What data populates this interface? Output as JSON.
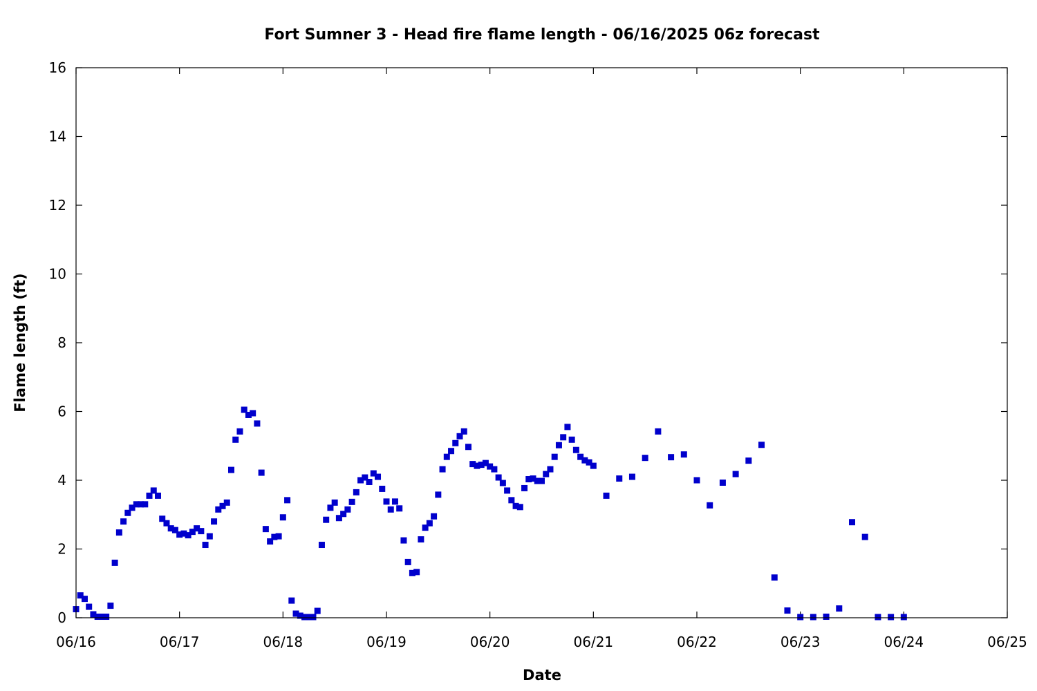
{
  "chart_data": {
    "type": "scatter",
    "title": "Fort Sumner 3 - Head fire flame length - 06/16/2025 06z forecast",
    "xlabel": "Date",
    "ylabel": "Flame length (ft)",
    "xlim": [
      "2025-06-16T00:00",
      "2025-06-25T00:00"
    ],
    "ylim": [
      0,
      16
    ],
    "x_ticks": [
      "06/16",
      "06/17",
      "06/18",
      "06/19",
      "06/20",
      "06/21",
      "06/22",
      "06/23",
      "06/24",
      "06/25"
    ],
    "y_ticks": [
      "0",
      "2",
      "4",
      "6",
      "8",
      "10",
      "12",
      "14",
      "16"
    ],
    "grid": false,
    "legend": false,
    "marker_color": "#0000cc",
    "series": [
      {
        "points": [
          [
            "2025-06-16T00:00",
            0.25
          ],
          [
            "2025-06-16T01:00",
            0.65
          ],
          [
            "2025-06-16T02:00",
            0.55
          ],
          [
            "2025-06-16T03:00",
            0.32
          ],
          [
            "2025-06-16T04:00",
            0.1
          ],
          [
            "2025-06-16T05:00",
            0.03
          ],
          [
            "2025-06-16T06:00",
            0.03
          ],
          [
            "2025-06-16T07:00",
            0.03
          ],
          [
            "2025-06-16T08:00",
            0.35
          ],
          [
            "2025-06-16T09:00",
            1.6
          ],
          [
            "2025-06-16T10:00",
            2.48
          ],
          [
            "2025-06-16T11:00",
            2.8
          ],
          [
            "2025-06-16T12:00",
            3.05
          ],
          [
            "2025-06-16T13:00",
            3.2
          ],
          [
            "2025-06-16T14:00",
            3.3
          ],
          [
            "2025-06-16T15:00",
            3.3
          ],
          [
            "2025-06-16T16:00",
            3.3
          ],
          [
            "2025-06-16T17:00",
            3.55
          ],
          [
            "2025-06-16T18:00",
            3.7
          ],
          [
            "2025-06-16T19:00",
            3.55
          ],
          [
            "2025-06-16T20:00",
            2.88
          ],
          [
            "2025-06-16T21:00",
            2.75
          ],
          [
            "2025-06-16T22:00",
            2.6
          ],
          [
            "2025-06-16T23:00",
            2.55
          ],
          [
            "2025-06-17T00:00",
            2.42
          ],
          [
            "2025-06-17T01:00",
            2.45
          ],
          [
            "2025-06-17T02:00",
            2.4
          ],
          [
            "2025-06-17T03:00",
            2.5
          ],
          [
            "2025-06-17T04:00",
            2.6
          ],
          [
            "2025-06-17T05:00",
            2.52
          ],
          [
            "2025-06-17T06:00",
            2.12
          ],
          [
            "2025-06-17T07:00",
            2.37
          ],
          [
            "2025-06-17T08:00",
            2.8
          ],
          [
            "2025-06-17T09:00",
            3.15
          ],
          [
            "2025-06-17T10:00",
            3.25
          ],
          [
            "2025-06-17T11:00",
            3.35
          ],
          [
            "2025-06-17T12:00",
            4.3
          ],
          [
            "2025-06-17T13:00",
            5.18
          ],
          [
            "2025-06-17T14:00",
            5.42
          ],
          [
            "2025-06-17T15:00",
            6.05
          ],
          [
            "2025-06-17T16:00",
            5.9
          ],
          [
            "2025-06-17T17:00",
            5.95
          ],
          [
            "2025-06-17T18:00",
            5.65
          ],
          [
            "2025-06-17T19:00",
            4.22
          ],
          [
            "2025-06-17T20:00",
            2.58
          ],
          [
            "2025-06-17T21:00",
            2.22
          ],
          [
            "2025-06-17T22:00",
            2.35
          ],
          [
            "2025-06-17T23:00",
            2.37
          ],
          [
            "2025-06-18T00:00",
            2.92
          ],
          [
            "2025-06-18T01:00",
            3.42
          ],
          [
            "2025-06-18T02:00",
            0.5
          ],
          [
            "2025-06-18T03:00",
            0.12
          ],
          [
            "2025-06-18T04:00",
            0.06
          ],
          [
            "2025-06-18T05:00",
            0.02
          ],
          [
            "2025-06-18T06:00",
            0.02
          ],
          [
            "2025-06-18T07:00",
            0.02
          ],
          [
            "2025-06-18T08:00",
            0.2
          ],
          [
            "2025-06-18T09:00",
            2.12
          ],
          [
            "2025-06-18T10:00",
            2.85
          ],
          [
            "2025-06-18T11:00",
            3.2
          ],
          [
            "2025-06-18T12:00",
            3.35
          ],
          [
            "2025-06-18T13:00",
            2.9
          ],
          [
            "2025-06-18T14:00",
            3.02
          ],
          [
            "2025-06-18T15:00",
            3.15
          ],
          [
            "2025-06-18T16:00",
            3.37
          ],
          [
            "2025-06-18T17:00",
            3.65
          ],
          [
            "2025-06-18T18:00",
            4.0
          ],
          [
            "2025-06-18T19:00",
            4.08
          ],
          [
            "2025-06-18T20:00",
            3.95
          ],
          [
            "2025-06-18T21:00",
            4.2
          ],
          [
            "2025-06-18T22:00",
            4.1
          ],
          [
            "2025-06-18T23:00",
            3.75
          ],
          [
            "2025-06-19T00:00",
            3.38
          ],
          [
            "2025-06-19T01:00",
            3.15
          ],
          [
            "2025-06-19T02:00",
            3.38
          ],
          [
            "2025-06-19T03:00",
            3.18
          ],
          [
            "2025-06-19T04:00",
            2.25
          ],
          [
            "2025-06-19T05:00",
            1.62
          ],
          [
            "2025-06-19T06:00",
            1.3
          ],
          [
            "2025-06-19T07:00",
            1.33
          ],
          [
            "2025-06-19T08:00",
            2.28
          ],
          [
            "2025-06-19T09:00",
            2.62
          ],
          [
            "2025-06-19T10:00",
            2.75
          ],
          [
            "2025-06-19T11:00",
            2.95
          ],
          [
            "2025-06-19T12:00",
            3.58
          ],
          [
            "2025-06-19T13:00",
            4.32
          ],
          [
            "2025-06-19T14:00",
            4.68
          ],
          [
            "2025-06-19T15:00",
            4.85
          ],
          [
            "2025-06-19T16:00",
            5.08
          ],
          [
            "2025-06-19T17:00",
            5.28
          ],
          [
            "2025-06-19T18:00",
            5.42
          ],
          [
            "2025-06-19T19:00",
            4.97
          ],
          [
            "2025-06-19T20:00",
            4.47
          ],
          [
            "2025-06-19T21:00",
            4.42
          ],
          [
            "2025-06-19T22:00",
            4.45
          ],
          [
            "2025-06-19T23:00",
            4.5
          ],
          [
            "2025-06-20T00:00",
            4.4
          ],
          [
            "2025-06-20T01:00",
            4.32
          ],
          [
            "2025-06-20T02:00",
            4.08
          ],
          [
            "2025-06-20T03:00",
            3.92
          ],
          [
            "2025-06-20T04:00",
            3.7
          ],
          [
            "2025-06-20T05:00",
            3.42
          ],
          [
            "2025-06-20T06:00",
            3.25
          ],
          [
            "2025-06-20T07:00",
            3.22
          ],
          [
            "2025-06-20T08:00",
            3.77
          ],
          [
            "2025-06-20T09:00",
            4.03
          ],
          [
            "2025-06-20T10:00",
            4.05
          ],
          [
            "2025-06-20T11:00",
            3.98
          ],
          [
            "2025-06-20T12:00",
            3.98
          ],
          [
            "2025-06-20T13:00",
            4.18
          ],
          [
            "2025-06-20T14:00",
            4.32
          ],
          [
            "2025-06-20T15:00",
            4.68
          ],
          [
            "2025-06-20T16:00",
            5.02
          ],
          [
            "2025-06-20T17:00",
            5.25
          ],
          [
            "2025-06-20T18:00",
            5.55
          ],
          [
            "2025-06-20T19:00",
            5.18
          ],
          [
            "2025-06-20T20:00",
            4.88
          ],
          [
            "2025-06-20T21:00",
            4.68
          ],
          [
            "2025-06-20T22:00",
            4.58
          ],
          [
            "2025-06-20T23:00",
            4.52
          ],
          [
            "2025-06-21T00:00",
            4.42
          ],
          [
            "2025-06-21T03:00",
            3.55
          ],
          [
            "2025-06-21T06:00",
            4.05
          ],
          [
            "2025-06-21T09:00",
            4.1
          ],
          [
            "2025-06-21T12:00",
            4.65
          ],
          [
            "2025-06-21T15:00",
            5.42
          ],
          [
            "2025-06-21T18:00",
            4.67
          ],
          [
            "2025-06-21T21:00",
            4.75
          ],
          [
            "2025-06-22T00:00",
            4.0
          ],
          [
            "2025-06-22T03:00",
            3.27
          ],
          [
            "2025-06-22T06:00",
            3.93
          ],
          [
            "2025-06-22T09:00",
            4.18
          ],
          [
            "2025-06-22T12:00",
            4.57
          ],
          [
            "2025-06-22T15:00",
            5.03
          ],
          [
            "2025-06-22T18:00",
            1.17
          ],
          [
            "2025-06-22T21:00",
            0.21
          ],
          [
            "2025-06-23T00:00",
            0.02
          ],
          [
            "2025-06-23T03:00",
            0.02
          ],
          [
            "2025-06-23T06:00",
            0.03
          ],
          [
            "2025-06-23T09:00",
            0.27
          ],
          [
            "2025-06-23T12:00",
            2.78
          ],
          [
            "2025-06-23T15:00",
            2.35
          ],
          [
            "2025-06-23T18:00",
            0.02
          ],
          [
            "2025-06-23T21:00",
            0.02
          ],
          [
            "2025-06-24T00:00",
            0.02
          ]
        ]
      }
    ]
  }
}
